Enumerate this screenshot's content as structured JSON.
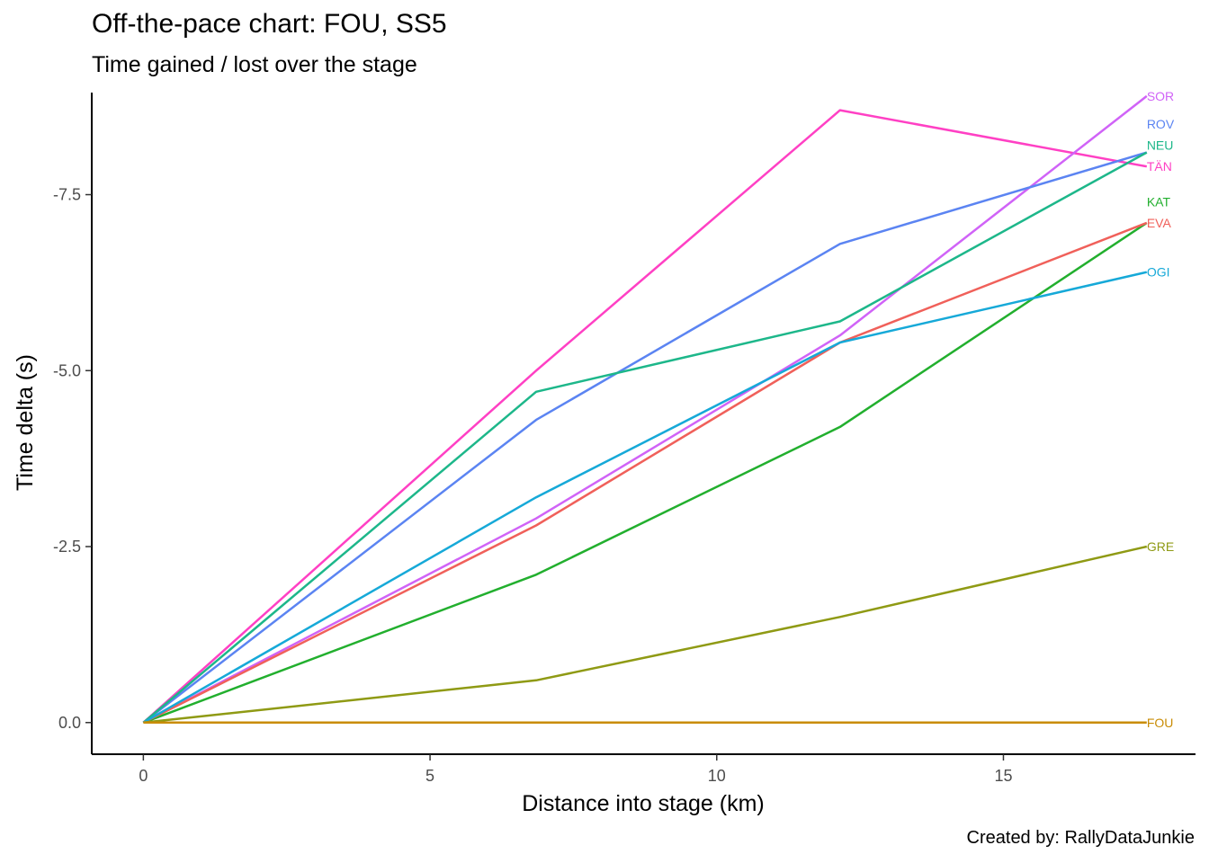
{
  "title": "Off-the-pace chart: FOU, SS5",
  "subtitle": "Time gained / lost over the stage",
  "caption": "Created by: RallyDataJunkie",
  "chart_data": {
    "type": "line",
    "title": "Off-the-pace chart: FOU, SS5",
    "subtitle": "Time gained / lost over the stage",
    "xlabel": "Distance into stage (km)",
    "ylabel": "Time delta (s)",
    "xlim": [
      -0.9,
      18.35
    ],
    "ylim": [
      -8.95,
      0.45
    ],
    "y_reversed": true,
    "grid": false,
    "legend": "direct labels at line ends",
    "x_ticks": [
      0,
      5,
      10,
      15
    ],
    "x_tick_labels": [
      "0",
      "5",
      "10",
      "15"
    ],
    "y_ticks": [
      0,
      -2.5,
      -5,
      -7.5
    ],
    "y_tick_labels": [
      "0.0",
      "-2.5",
      "-5.0",
      "-7.5"
    ],
    "x": [
      0,
      6.85,
      12.15,
      17.5
    ],
    "series": [
      {
        "name": "TÄN",
        "color": "#FF40C4",
        "values": [
          0,
          -5.0,
          -8.7,
          -7.9
        ],
        "label_y": -7.9
      },
      {
        "name": "SOR",
        "color": "#D063F7",
        "values": [
          0,
          -2.9,
          -5.5,
          -8.9
        ],
        "label_y": -8.9
      },
      {
        "name": "ROV",
        "color": "#5B84F2",
        "values": [
          0,
          -4.3,
          -6.8,
          -8.1
        ],
        "label_y": -8.5
      },
      {
        "name": "NEU",
        "color": "#1DB78A",
        "values": [
          0,
          -4.7,
          -5.7,
          -8.1
        ],
        "label_y": -8.2
      },
      {
        "name": "KAT",
        "color": "#22AF2E",
        "values": [
          0,
          -2.1,
          -4.2,
          -7.1
        ],
        "label_y": -7.4
      },
      {
        "name": "EVA",
        "color": "#F0605A",
        "values": [
          0,
          -2.8,
          -5.4,
          -7.1
        ],
        "label_y": -7.1
      },
      {
        "name": "OGI",
        "color": "#16A9D8",
        "values": [
          0,
          -3.2,
          -5.4,
          -6.4
        ],
        "label_y": -6.4
      },
      {
        "name": "GRE",
        "color": "#8F9A14",
        "values": [
          0,
          -0.6,
          -1.5,
          -2.5
        ],
        "label_y": -2.5
      },
      {
        "name": "FOU",
        "color": "#C98C06",
        "values": [
          0,
          0,
          0,
          0
        ],
        "label_y": 0
      }
    ]
  }
}
